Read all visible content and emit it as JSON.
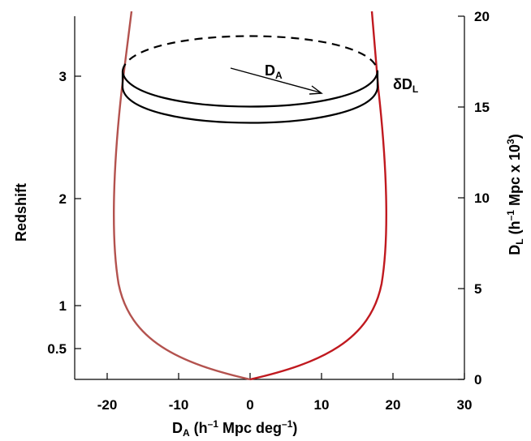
{
  "chart_data": {
    "type": "diagram",
    "left_axis": {
      "label": "Redshift",
      "ticks": [
        "3",
        "2",
        "1",
        "0.5"
      ]
    },
    "right_axis": {
      "label_main": "D",
      "label_sub": "L",
      "label_rest": " (h",
      "label_sup1": "–1",
      "label_mid": " Mpc x 10",
      "label_sup2": "3",
      "label_end": ")",
      "ticks": [
        "20",
        "15",
        "10",
        "5",
        "0"
      ]
    },
    "x_axis": {
      "label_main": "D",
      "label_sub": "A",
      "label_rest": " (h",
      "label_sup1": "–1",
      "label_mid": " Mpc deg",
      "label_sup2": "–1",
      "label_end": ")",
      "ticks": [
        "-20",
        "-10",
        "0",
        "10",
        "20",
        "30"
      ]
    },
    "annotations": {
      "da_main": "D",
      "da_sub": "A",
      "ddl_main": "δD",
      "ddl_sub": "L"
    },
    "colors": {
      "curve_left": "#b3524e",
      "curve_right": "#c0191f",
      "ring": "#000000"
    }
  }
}
